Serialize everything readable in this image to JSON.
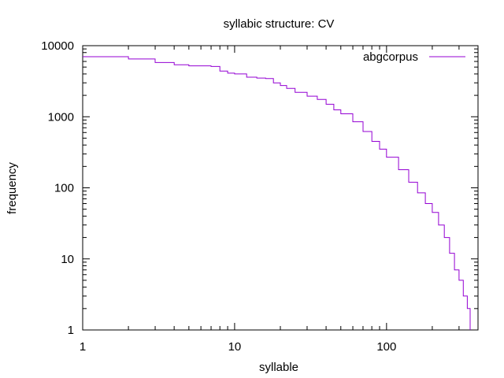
{
  "chart_data": {
    "type": "line",
    "title": "syllabic structure: CV",
    "xlabel": "syllable",
    "ylabel": "frequency",
    "xscale": "log",
    "yscale": "log",
    "xlim": [
      1,
      400
    ],
    "ylim": [
      1,
      10000
    ],
    "xticks": [
      "1",
      "10",
      "100"
    ],
    "yticks": [
      "1",
      "10",
      "100",
      "1000",
      "10000"
    ],
    "grid": false,
    "legend_position": "top-right",
    "series": [
      {
        "name": "abgcorpus",
        "color": "#9400d3",
        "points": [
          [
            1,
            7000
          ],
          [
            2,
            6500
          ],
          [
            3,
            5800
          ],
          [
            4,
            5400
          ],
          [
            5,
            5200
          ],
          [
            6,
            5200
          ],
          [
            7,
            5100
          ],
          [
            8,
            4400
          ],
          [
            9,
            4100
          ],
          [
            10,
            4000
          ],
          [
            12,
            3600
          ],
          [
            14,
            3500
          ],
          [
            16,
            3450
          ],
          [
            18,
            3000
          ],
          [
            20,
            2750
          ],
          [
            22,
            2500
          ],
          [
            25,
            2200
          ],
          [
            30,
            1950
          ],
          [
            35,
            1750
          ],
          [
            40,
            1500
          ],
          [
            45,
            1250
          ],
          [
            50,
            1100
          ],
          [
            60,
            850
          ],
          [
            70,
            620
          ],
          [
            80,
            450
          ],
          [
            90,
            350
          ],
          [
            100,
            270
          ],
          [
            120,
            180
          ],
          [
            140,
            120
          ],
          [
            160,
            85
          ],
          [
            180,
            60
          ],
          [
            200,
            45
          ],
          [
            220,
            30
          ],
          [
            240,
            20
          ],
          [
            260,
            12
          ],
          [
            280,
            7
          ],
          [
            300,
            5
          ],
          [
            320,
            3
          ],
          [
            340,
            2
          ],
          [
            355,
            1
          ]
        ]
      }
    ]
  }
}
